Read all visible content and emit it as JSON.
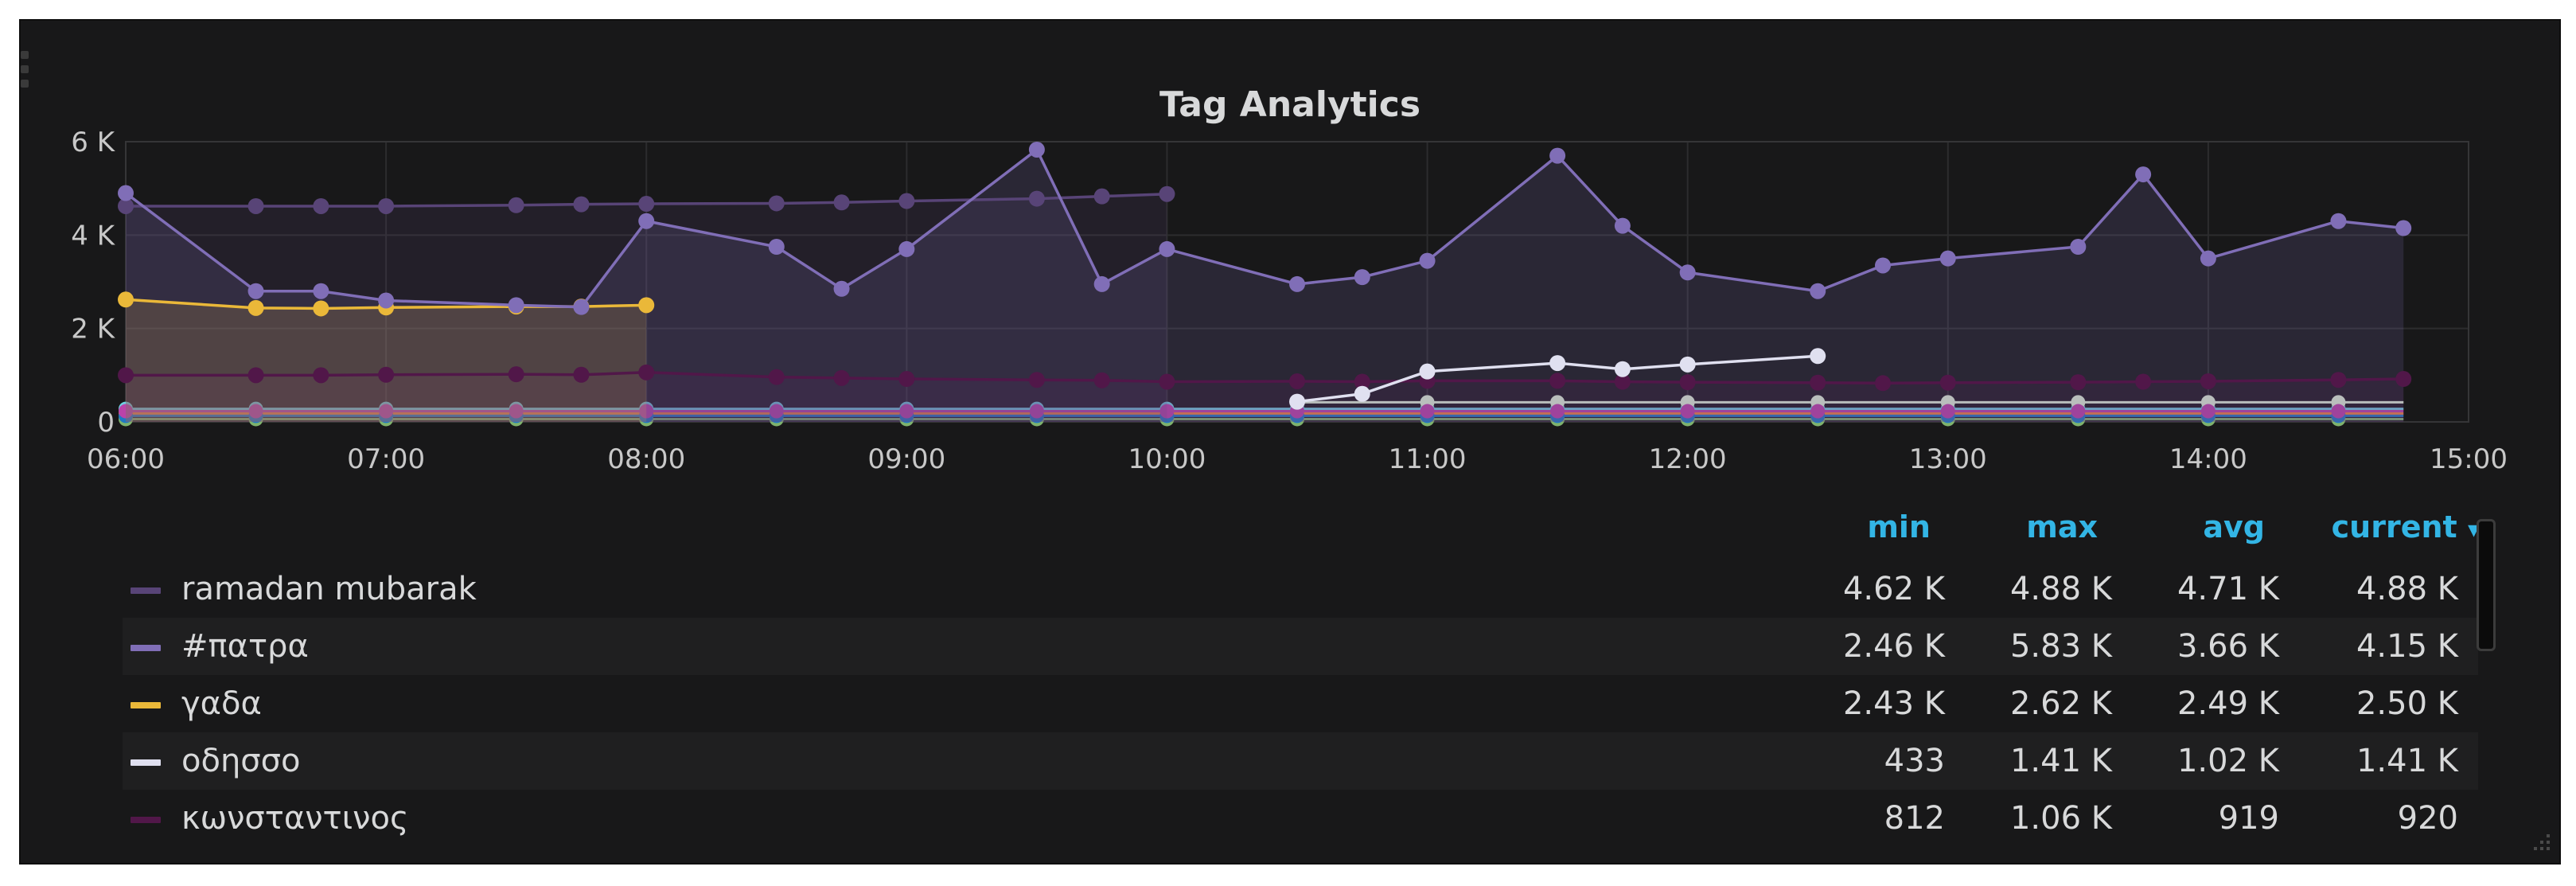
{
  "panel": {
    "title": "Tag Analytics"
  },
  "legend": {
    "columns": [
      "min",
      "max",
      "avg",
      "current"
    ],
    "sort_indicator": "▾",
    "rows": [
      {
        "name": "ramadan mubarak",
        "color": "#584477",
        "min": "4.62 K",
        "max": "4.88 K",
        "avg": "4.71 K",
        "current": "4.88 K"
      },
      {
        "name": "#πατρα",
        "color": "#806eb7",
        "min": "2.46 K",
        "max": "5.83 K",
        "avg": "3.66 K",
        "current": "4.15 K"
      },
      {
        "name": "γαδα",
        "color": "#eab839",
        "min": "2.43 K",
        "max": "2.62 K",
        "avg": "2.49 K",
        "current": "2.50 K"
      },
      {
        "name": "οδησσο",
        "color": "#e0e0f0",
        "min": "433",
        "max": "1.41 K",
        "avg": "1.02 K",
        "current": "1.41 K"
      },
      {
        "name": "κωνσταντινος",
        "color": "#511749",
        "min": "812",
        "max": "1.06 K",
        "avg": "919",
        "current": "920"
      }
    ]
  },
  "chart_data": {
    "type": "area",
    "title": "Tag Analytics",
    "x_unit": "time (HH:MM)",
    "xlim": [
      "06:00",
      "15:00"
    ],
    "ylim": [
      0,
      6000
    ],
    "x_ticks": [
      "06:00",
      "07:00",
      "08:00",
      "09:00",
      "10:00",
      "11:00",
      "12:00",
      "13:00",
      "14:00",
      "15:00"
    ],
    "y_ticks": [
      "0",
      "2 K",
      "4 K",
      "6 K"
    ],
    "grid": true,
    "legend_position": "bottom",
    "series": [
      {
        "name": "ramadan mubarak",
        "color": "#584477",
        "fill": true,
        "x": [
          "06:00",
          "06:30",
          "06:45",
          "07:00",
          "07:30",
          "07:45",
          "08:00",
          "08:30",
          "08:45",
          "09:00",
          "09:30",
          "09:45",
          "10:00"
        ],
        "y": [
          4620,
          4620,
          4620,
          4620,
          4640,
          4660,
          4670,
          4680,
          4700,
          4730,
          4780,
          4830,
          4880
        ]
      },
      {
        "name": "#πατρα",
        "color": "#806eb7",
        "fill": true,
        "x": [
          "06:00",
          "06:30",
          "06:45",
          "07:00",
          "07:30",
          "07:45",
          "08:00",
          "08:30",
          "08:45",
          "09:00",
          "09:30",
          "09:45",
          "10:00",
          "10:30",
          "10:45",
          "11:00",
          "11:30",
          "11:45",
          "12:00",
          "12:30",
          "12:45",
          "13:00",
          "13:30",
          "13:45",
          "14:00",
          "14:30",
          "14:45"
        ],
        "y": [
          4900,
          2800,
          2800,
          2600,
          2500,
          2460,
          4300,
          3750,
          2850,
          3700,
          5830,
          2950,
          3700,
          2950,
          3100,
          3450,
          5700,
          4200,
          3200,
          2800,
          3350,
          3500,
          3750,
          5300,
          3500,
          4300,
          4150
        ]
      },
      {
        "name": "γαδα",
        "color": "#eab839",
        "fill": true,
        "x": [
          "06:00",
          "06:30",
          "06:45",
          "07:00",
          "07:30",
          "07:45",
          "08:00"
        ],
        "y": [
          2620,
          2440,
          2430,
          2450,
          2470,
          2470,
          2500
        ]
      },
      {
        "name": "οδησσο",
        "color": "#e0e0f0",
        "fill": false,
        "x": [
          "10:30",
          "10:45",
          "11:00",
          "11:30",
          "11:45",
          "12:00",
          "12:30"
        ],
        "y": [
          433,
          600,
          1080,
          1260,
          1130,
          1230,
          1410
        ]
      },
      {
        "name": "κωνσταντινος",
        "color": "#511749",
        "fill": true,
        "x": [
          "06:00",
          "06:30",
          "06:45",
          "07:00",
          "07:30",
          "07:45",
          "08:00",
          "08:30",
          "08:45",
          "09:00",
          "09:30",
          "09:45",
          "10:00",
          "10:30",
          "10:45",
          "11:00",
          "11:30",
          "11:45",
          "12:00",
          "12:30",
          "12:45",
          "13:00",
          "13:30",
          "13:45",
          "14:00",
          "14:30",
          "14:45"
        ],
        "y": [
          1000,
          1000,
          1000,
          1010,
          1020,
          1010,
          1060,
          960,
          940,
          920,
          900,
          890,
          860,
          870,
          860,
          880,
          880,
          860,
          850,
          840,
          830,
          840,
          850,
          860,
          870,
          900,
          920
        ]
      }
    ],
    "low_series": [
      {
        "color": "#7eb26d",
        "level": 60,
        "x_range": [
          "06:00",
          "14:45"
        ]
      },
      {
        "color": "#6ed0e0",
        "level": 280,
        "x_range": [
          "06:00",
          "14:45"
        ]
      },
      {
        "color": "#e0f9d7",
        "level": 420,
        "x_range": [
          "10:30",
          "14:45"
        ]
      },
      {
        "color": "#ef843c",
        "level": 180,
        "x_range": [
          "06:00",
          "14:45"
        ]
      },
      {
        "color": "#1f78c1",
        "level": 130,
        "x_range": [
          "06:00",
          "14:45"
        ]
      },
      {
        "color": "#ba43a9",
        "level": 230,
        "x_range": [
          "06:00",
          "14:45"
        ]
      }
    ]
  }
}
